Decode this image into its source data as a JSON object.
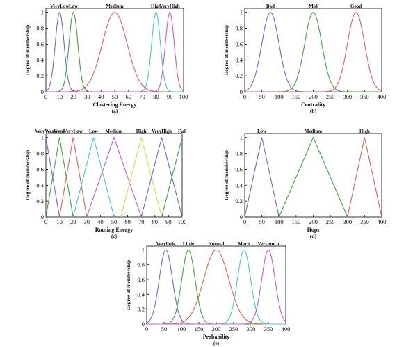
{
  "chart_data": [
    {
      "type": "line",
      "caption": "(a)",
      "xlabel": "Clustering Energy",
      "ylabel": "Degree of membership",
      "xlim": [
        0,
        100
      ],
      "ylim": [
        0,
        1.05
      ],
      "xticks": [
        "0",
        "10",
        "20",
        "30",
        "40",
        "50",
        "60",
        "70",
        "80",
        "90",
        "100"
      ],
      "yticks": [
        "0",
        "0.2",
        "0.4",
        "0.6",
        "0.8",
        "1"
      ],
      "series": [
        {
          "name": "VeryLow",
          "shape": "gauss",
          "center": 10,
          "sigma": 3.2,
          "color": "#6a6ad6"
        },
        {
          "name": "Low",
          "shape": "gauss",
          "center": 20,
          "sigma": 3.2,
          "color": "#3fa43f"
        },
        {
          "name": "Medium",
          "shape": "gauss",
          "center": 50,
          "sigma": 9,
          "color": "#e0605a"
        },
        {
          "name": "High",
          "shape": "gauss",
          "center": 80,
          "sigma": 3.2,
          "color": "#40c8cf"
        },
        {
          "name": "VeryHigh",
          "shape": "gauss",
          "center": 90,
          "sigma": 3.2,
          "color": "#c85ac8"
        }
      ]
    },
    {
      "type": "line",
      "caption": "(b)",
      "xlabel": "Centrality",
      "ylabel": "Degree of membership",
      "xlim": [
        0,
        400
      ],
      "ylim": [
        0,
        1.05
      ],
      "xticks": [
        "0",
        "50",
        "100",
        "150",
        "200",
        "250",
        "300",
        "350",
        "400"
      ],
      "yticks": [
        "0",
        "0.2",
        "0.4",
        "0.6",
        "0.8",
        "1"
      ],
      "series": [
        {
          "name": "Bad",
          "shape": "gauss",
          "center": 75,
          "sigma": 25,
          "color": "#6a6ad6"
        },
        {
          "name": "Mid",
          "shape": "gauss",
          "center": 200,
          "sigma": 25,
          "color": "#3fa43f"
        },
        {
          "name": "Good",
          "shape": "gauss",
          "center": 325,
          "sigma": 25,
          "color": "#e0605a"
        }
      ]
    },
    {
      "type": "line",
      "caption": "(c)",
      "xlabel": "Routing Energy",
      "ylabel": "Degree of membership",
      "xlim": [
        0,
        100
      ],
      "ylim": [
        0,
        1.05
      ],
      "xticks": [
        "0",
        "10",
        "20",
        "30",
        "40",
        "50",
        "60",
        "70",
        "80",
        "90",
        "100"
      ],
      "yticks": [
        "0",
        "0.2",
        "0.4",
        "0.6",
        "0.8",
        "1"
      ],
      "series": [
        {
          "name": "VeryWeak",
          "shape": "tri",
          "points": [
            0,
            0,
            10
          ],
          "color": "#6a6ad6"
        },
        {
          "name": "Weak",
          "shape": "tri",
          "points": [
            0,
            10,
            20
          ],
          "color": "#3fa43f"
        },
        {
          "name": "VeryLow",
          "shape": "tri",
          "points": [
            10,
            20,
            30
          ],
          "color": "#e0605a"
        },
        {
          "name": "Low",
          "shape": "tri",
          "points": [
            20,
            35,
            50
          ],
          "color": "#40c8cf"
        },
        {
          "name": "Medium",
          "shape": "tri",
          "points": [
            30,
            50,
            70
          ],
          "color": "#c85ac8"
        },
        {
          "name": "High",
          "shape": "tri",
          "points": [
            55,
            70,
            85
          ],
          "color": "#d9d94a"
        },
        {
          "name": "VeryHigh",
          "shape": "tri",
          "points": [
            70,
            85,
            100
          ],
          "color": "#6a6ad6"
        },
        {
          "name": "Full",
          "shape": "tri",
          "points": [
            85,
            100,
            100
          ],
          "color": "#3fa43f"
        }
      ]
    },
    {
      "type": "line",
      "caption": "(d)",
      "xlabel": "Hops",
      "ylabel": "Degree of membership",
      "xlim": [
        0,
        400
      ],
      "ylim": [
        0,
        1.05
      ],
      "xticks": [
        "0",
        "50",
        "100",
        "150",
        "200",
        "250",
        "300",
        "350",
        "400"
      ],
      "yticks": [
        "0",
        "0.2",
        "0.4",
        "0.6",
        "0.8",
        "1"
      ],
      "series": [
        {
          "name": "Low",
          "shape": "tri",
          "points": [
            0,
            50,
            100
          ],
          "color": "#6a6ad6"
        },
        {
          "name": "Medium",
          "shape": "tri",
          "points": [
            100,
            200,
            300
          ],
          "color": "#3fa43f"
        },
        {
          "name": "High",
          "shape": "tri",
          "points": [
            300,
            350,
            400
          ],
          "color": "#e0605a"
        }
      ]
    },
    {
      "type": "line",
      "caption": "(e)",
      "xlabel": "Probability",
      "ylabel": "Degree of membership",
      "xlim": [
        0,
        400
      ],
      "ylim": [
        0,
        1.05
      ],
      "xticks": [
        "0",
        "50",
        "100",
        "150",
        "200",
        "250",
        "300",
        "350",
        "400"
      ],
      "yticks": [
        "0",
        "0.2",
        "0.4",
        "0.6",
        "0.8",
        "1"
      ],
      "series": [
        {
          "name": "Verylittle",
          "shape": "gauss",
          "center": 55,
          "sigma": 19,
          "color": "#6a6ad6"
        },
        {
          "name": "Little",
          "shape": "gauss",
          "center": 120,
          "sigma": 19,
          "color": "#3fa43f"
        },
        {
          "name": "Normal",
          "shape": "gauss",
          "center": 200,
          "sigma": 36,
          "color": "#e0605a"
        },
        {
          "name": "Much",
          "shape": "gauss",
          "center": 280,
          "sigma": 19,
          "color": "#40c8cf"
        },
        {
          "name": "Verymuch",
          "shape": "gauss",
          "center": 350,
          "sigma": 19,
          "color": "#c85ac8"
        }
      ]
    }
  ]
}
